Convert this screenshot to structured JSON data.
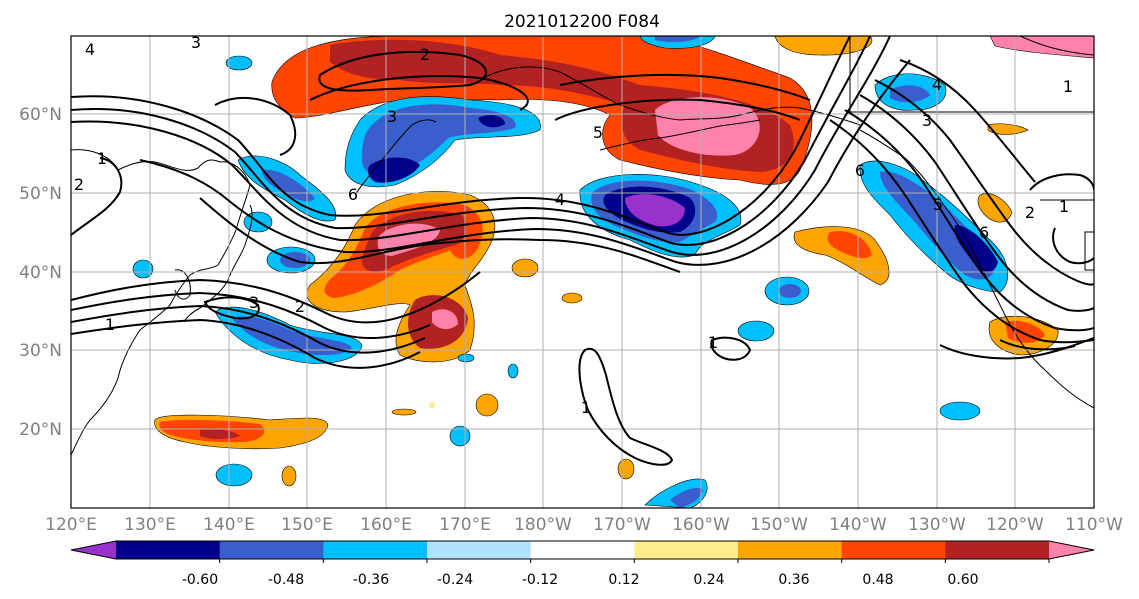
{
  "title": "2021012200 F084",
  "map": {
    "lon_labels": [
      "120°E",
      "130°E",
      "140°E",
      "150°E",
      "160°E",
      "170°E",
      "180°W",
      "170°W",
      "160°W",
      "150°W",
      "140°W",
      "130°W",
      "120°W",
      "110°W"
    ],
    "lat_labels": [
      "20°N",
      "30°N",
      "40°N",
      "50°N",
      "60°N"
    ],
    "contour_labels": [
      "1",
      "1",
      "2",
      "2",
      "3",
      "3",
      "4",
      "5",
      "6",
      "6",
      "4",
      "5",
      "3",
      "2",
      "1",
      "1",
      "1",
      "4",
      "3",
      "6",
      "2",
      "1"
    ]
  },
  "colorbar": {
    "tick_labels": [
      "-0.60",
      "-0.48",
      "-0.36",
      "-0.24",
      "-0.12",
      "0.12",
      "0.24",
      "0.36",
      "0.48",
      "0.60"
    ],
    "colors": [
      "#9932cc",
      "#00008b",
      "#3a5fcd",
      "#00bfff",
      "#b0e2ff",
      "#ffffff",
      "#ffec8b",
      "#ffa500",
      "#ff4500",
      "#b22222",
      "#ff82ab"
    ]
  },
  "palette": {
    "purple": "#9932cc",
    "navy": "#00008b",
    "blue": "#3a5fcd",
    "sky": "#00bfff",
    "lightblue": "#b0e2ff",
    "yellow": "#ffec8b",
    "orange": "#ffa500",
    "redorange": "#ff4500",
    "firebrick": "#b22222",
    "pink": "#ff82ab"
  }
}
